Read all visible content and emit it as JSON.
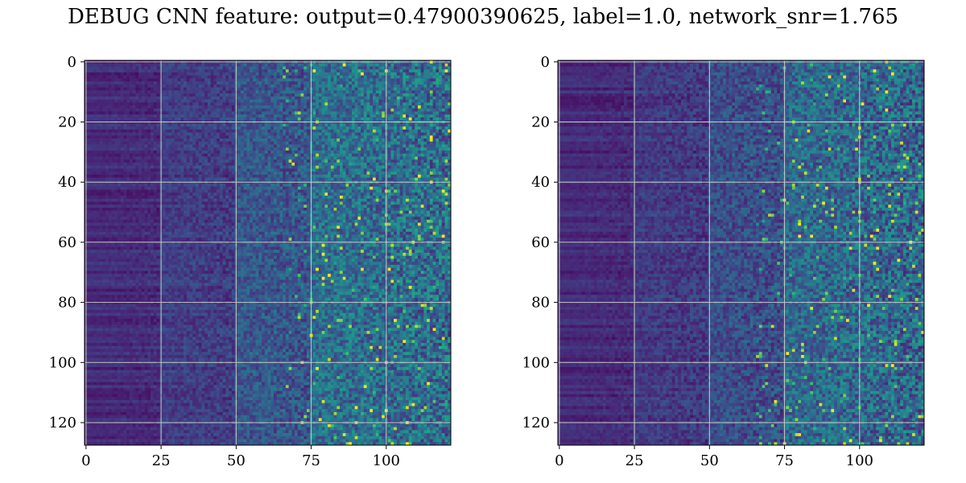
{
  "figure": {
    "title": "DEBUG CNN feature: output=0.47900390625, label=1.0, network_snr=1.765"
  },
  "colors": {
    "colormap": "viridis",
    "grid": "#c8c8c8",
    "axes": "#000000"
  },
  "chart_data": [
    {
      "type": "heatmap",
      "title": "",
      "xlabel": "",
      "ylabel": "",
      "rows": 128,
      "cols": 122,
      "xlim": [
        -0.5,
        121.5
      ],
      "ylim": [
        127.5,
        -0.5
      ],
      "y_inverted": true,
      "grid": true,
      "colormap": "viridis",
      "x_ticks": [
        0,
        25,
        50,
        75,
        100
      ],
      "x_tick_labels": [
        "0",
        "25",
        "50",
        "75",
        "100"
      ],
      "y_ticks": [
        0,
        20,
        40,
        60,
        80,
        100,
        120
      ],
      "y_tick_labels": [
        "0",
        "20",
        "40",
        "60",
        "80",
        "100",
        "120"
      ],
      "column_band_mean_intensity": [
        {
          "col_range": [
            0,
            25
          ],
          "level": 0.12
        },
        {
          "col_range": [
            25,
            50
          ],
          "level": 0.18
        },
        {
          "col_range": [
            50,
            75
          ],
          "level": 0.27
        },
        {
          "col_range": [
            75,
            122
          ],
          "level": 0.36
        }
      ]
    },
    {
      "type": "heatmap",
      "title": "",
      "xlabel": "",
      "ylabel": "",
      "rows": 128,
      "cols": 122,
      "xlim": [
        -0.5,
        121.5
      ],
      "ylim": [
        127.5,
        -0.5
      ],
      "y_inverted": true,
      "grid": true,
      "colormap": "viridis",
      "x_ticks": [
        0,
        25,
        50,
        75,
        100
      ],
      "x_tick_labels": [
        "0",
        "25",
        "50",
        "75",
        "100"
      ],
      "y_ticks": [
        0,
        20,
        40,
        60,
        80,
        100,
        120
      ],
      "y_tick_labels": [
        "0",
        "20",
        "40",
        "60",
        "80",
        "100",
        "120"
      ],
      "column_band_mean_intensity": [
        {
          "col_range": [
            0,
            25
          ],
          "level": 0.12
        },
        {
          "col_range": [
            25,
            50
          ],
          "level": 0.17
        },
        {
          "col_range": [
            50,
            75
          ],
          "level": 0.24
        },
        {
          "col_range": [
            75,
            122
          ],
          "level": 0.34
        }
      ]
    }
  ]
}
